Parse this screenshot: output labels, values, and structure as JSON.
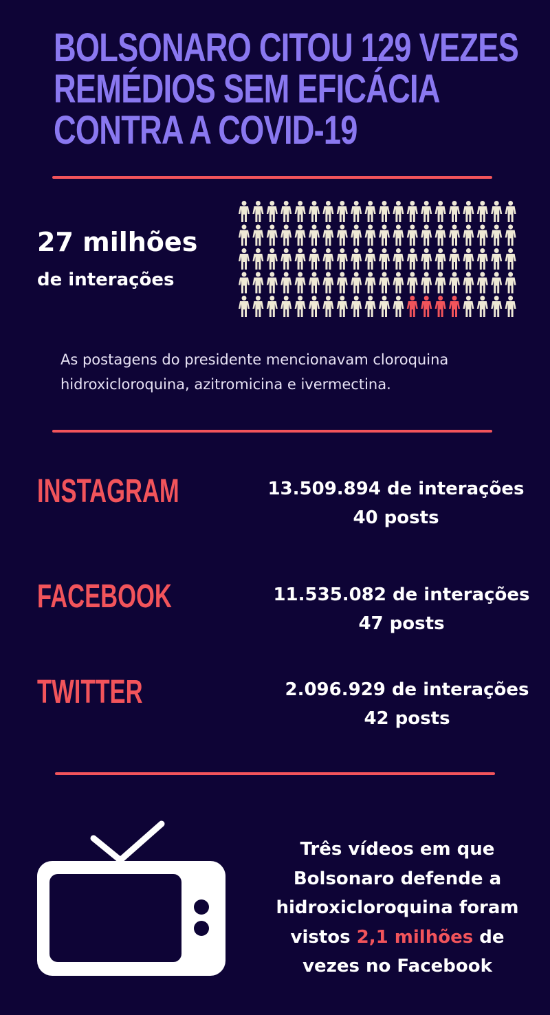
{
  "title": {
    "line1": "BOLSONARO CITOU 129 VEZES",
    "line2": "REMÉDIOS SEM EFICÁCIA",
    "line3": "CONTRA A COVID-19"
  },
  "summary": {
    "big_number": "27 milhões",
    "big_sub": "de interações"
  },
  "pictogram": {
    "icon": "person-icon",
    "total": 100,
    "highlighted": 4,
    "color_default": "#efe9d6",
    "color_highlight": "#f2545b"
  },
  "description": {
    "line1": "As postagens do presidente mencionavam cloroquina",
    "line2": "hidroxicloroquina, azitromicina e ivermectina."
  },
  "platforms": [
    {
      "name": "INSTAGRAM",
      "interactions": "13.509.894 de interações",
      "posts": "40 posts"
    },
    {
      "name": "FACEBOOK",
      "interactions": "11.535.082 de interações",
      "posts": "47 posts"
    },
    {
      "name": "TWITTER",
      "interactions": "2.096.929 de interações",
      "posts": "42 posts"
    }
  ],
  "videos": {
    "icon": "tv-icon",
    "line1": "Três vídeos em que",
    "line2": "Bolsonaro defende a",
    "line3": "hidroxicloroquina foram",
    "line4_before": "vistos ",
    "line4_highlight": "2,1 milhões",
    "line4_after": " de",
    "line5": "vezes no Facebook"
  },
  "colors": {
    "background": "#0e0436",
    "title": "#8a78f0",
    "accent": "#f2545b",
    "text": "#ffffff"
  }
}
